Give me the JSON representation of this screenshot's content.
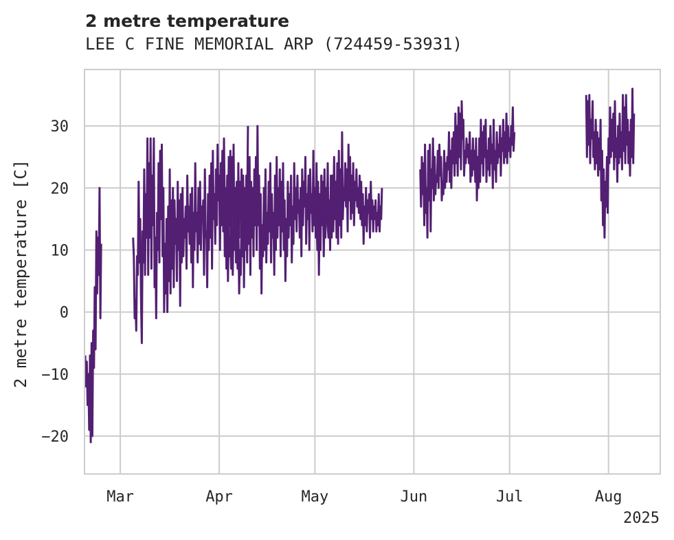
{
  "chart_data": {
    "type": "line",
    "title": "2 metre temperature",
    "subtitle": "LEE C FINE MEMORIAL ARP (724459-53931)",
    "ylabel": "2 metre temperature [C]",
    "xlabel": "",
    "year_label": "2025",
    "ylim": [
      -26,
      39
    ],
    "yticks": [
      30,
      20,
      10,
      0,
      -10,
      -20
    ],
    "ytick_labels": [
      "30",
      "20",
      "10",
      "0",
      "−10",
      "−20"
    ],
    "x_range": [
      "2025-02-18",
      "2025-08-17"
    ],
    "xticks": [
      {
        "date": "2025-03-01",
        "label": "Mar"
      },
      {
        "date": "2025-04-01",
        "label": "Apr"
      },
      {
        "date": "2025-05-01",
        "label": "May"
      },
      {
        "date": "2025-06-01",
        "label": "Jun"
      },
      {
        "date": "2025-07-01",
        "label": "Jul"
      },
      {
        "date": "2025-08-01",
        "label": "Aug"
      }
    ],
    "grid": true,
    "series": [
      {
        "name": "2 metre temperature",
        "color": "#531f72",
        "segments": [
          {
            "start": "2025-02-18",
            "values": [
              -7,
              -12,
              -8,
              -15,
              -10,
              -19,
              -7,
              -21,
              -5,
              -20,
              -3,
              -9,
              4,
              -6,
              13,
              3,
              12,
              6,
              20,
              -1,
              11
            ]
          },
          {
            "start": "2025-03-05",
            "values": [
              12,
              9,
              -1,
              2,
              -3,
              9,
              6,
              21,
              8,
              15,
              2,
              -5,
              13,
              8,
              23,
              6,
              19,
              12,
              28,
              6,
              24,
              12,
              28,
              7,
              22,
              14,
              28,
              4,
              12,
              -1,
              16,
              10,
              24,
              8,
              26,
              15,
              27,
              9,
              20,
              0,
              11,
              3,
              15,
              0,
              17,
              5,
              23,
              3,
              18,
              7,
              20,
              4,
              18,
              11,
              15,
              5,
              21,
              10,
              18,
              1,
              19,
              8,
              20,
              9,
              15,
              12,
              17,
              7,
              22,
              13,
              17,
              11,
              19,
              8,
              20,
              4,
              16,
              10,
              24,
              13,
              16,
              8,
              20,
              11,
              21,
              10,
              17,
              15,
              18,
              6,
              23,
              12,
              13,
              4,
              19,
              10,
              22,
              12,
              24,
              7,
              26,
              15,
              19,
              11,
              23,
              14,
              27,
              18,
              22,
              10,
              24,
              17,
              26,
              13,
              28,
              16,
              20,
              7,
              22,
              12,
              25,
              14,
              26,
              9,
              25,
              17,
              27,
              11,
              20,
              14,
              21,
              8,
              24,
              12,
              21,
              15,
              23,
              10,
              17,
              12,
              20,
              14,
              22,
              16,
              30
            ]
          },
          {
            "start": "2025-04-01",
            "values": [
              22,
              12,
              24,
              14,
              20,
              15,
              21,
              9,
              18,
              12,
              17,
              5,
              14,
              9,
              12,
              7,
              11,
              6,
              18,
              10,
              20,
              8,
              18,
              7,
              13,
              3,
              10,
              6,
              16,
              9,
              22,
              4,
              17,
              10,
              19,
              8,
              22,
              11,
              25,
              6,
              21,
              12,
              20,
              9,
              23,
              14,
              25,
              10,
              30,
              14,
              22,
              7,
              19,
              3,
              14,
              9,
              20,
              10,
              23,
              8,
              16,
              11,
              21,
              13,
              24,
              8,
              19,
              12,
              16,
              6,
              22,
              10,
              25,
              12,
              20,
              14,
              23,
              9,
              21,
              13,
              24,
              10,
              18,
              5,
              15,
              9,
              21,
              12,
              19,
              14,
              22,
              8,
              17,
              11,
              24,
              15,
              20,
              13,
              22,
              16,
              18,
              12,
              20,
              9,
              23,
              14,
              21,
              17,
              25,
              11,
              19,
              15,
              22,
              10,
              23,
              16,
              19,
              13,
              26,
              14,
              20,
              12,
              24,
              11,
              21,
              8,
              18,
              13,
              22,
              15,
              20,
              18,
              23,
              12,
              19,
              16,
              14,
              12,
              17,
              14,
              20,
              12,
              22,
              13,
              19,
              15,
              21,
              14
            ]
          },
          {
            "start": "2025-05-01",
            "values": [
              20,
              15,
              16,
              10,
              18,
              6,
              19,
              10,
              22,
              14,
              21,
              9,
              15,
              12,
              20,
              16,
              24,
              13,
              18,
              10,
              22,
              14,
              19,
              16,
              25,
              15,
              21,
              12,
              24,
              11,
              26,
              14,
              23,
              12,
              29,
              15,
              20,
              18,
              24,
              17,
              23,
              13,
              27,
              18,
              25,
              15,
              22,
              16,
              24,
              14,
              21,
              18,
              23,
              17,
              20,
              16,
              22,
              15,
              21,
              14,
              19,
              11,
              17,
              14,
              20,
              13,
              18,
              16,
              19,
              12,
              21,
              15,
              18,
              13,
              17,
              15,
              18,
              13,
              16,
              14,
              19,
              13,
              17,
              15,
              20
            ]
          },
          {
            "start": "2025-06-03",
            "values": [
              23,
              17,
              25,
              19,
              24,
              14,
              27,
              16,
              20,
              12,
              26,
              18,
              27,
              13,
              23,
              20,
              28,
              18,
              25,
              19,
              22,
              21,
              26,
              20,
              27,
              22,
              25,
              18,
              21,
              19,
              26,
              20,
              24,
              21,
              25,
              23,
              29,
              21,
              26,
              20,
              28,
              24,
              29,
              22,
              32,
              24,
              30,
              22,
              33,
              25,
              32,
              23,
              34,
              28,
              31,
              22,
              26,
              24,
              28,
              25,
              27,
              24,
              29,
              21,
              26,
              22,
              28,
              23,
              26,
              21,
              28,
              18,
              25,
              20,
              28,
              21,
              31,
              24,
              29,
              22,
              30,
              25,
              31,
              21,
              26,
              23,
              28,
              22,
              30,
              24,
              27,
              20,
              31,
              23,
              26,
              21,
              29,
              24,
              27,
              25,
              30,
              22,
              28,
              26,
              31,
              24,
              29,
              25,
              32,
              24,
              30,
              26,
              28,
              25,
              30,
              27,
              33,
              26,
              29
            ]
          },
          {
            "start": "2025-07-25",
            "values": [
              35,
              25,
              34,
              27,
              35,
              24,
              31,
              28,
              34,
              25,
              29,
              23,
              31,
              24,
              29,
              22,
              28,
              23,
              31,
              18,
              26,
              14,
              23,
              12,
              21,
              17,
              25,
              16,
              28,
              24,
              33,
              25,
              31,
              26,
              32,
              23,
              34,
              25,
              28,
              21,
              30,
              24,
              32,
              25,
              29,
              23,
              35,
              26,
              33,
              24,
              35,
              27,
              31,
              24,
              29,
              22,
              31,
              25,
              36,
              24,
              32
            ]
          }
        ]
      }
    ]
  }
}
